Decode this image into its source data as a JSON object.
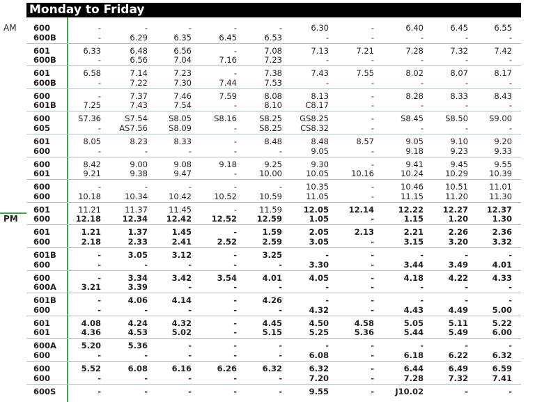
{
  "header": {
    "title": "Monday to Friday"
  },
  "periods": {
    "am": "AM",
    "pm": "PM"
  },
  "table": {
    "rows": [
      [
        "600",
        "-",
        "-",
        "-",
        "-",
        "-",
        "6.30",
        "-",
        "6.40",
        "6.45",
        "6.55"
      ],
      [
        "600B",
        "-",
        "6.29",
        "6.35",
        "6.45",
        "6.53",
        "-",
        "-",
        "-",
        "-",
        "-"
      ],
      [
        "601",
        "6.33",
        "6.48",
        "6.56",
        "-",
        "7.08",
        "7.13",
        "7.21",
        "7.28",
        "7.32",
        "7.42"
      ],
      [
        "600B",
        "-",
        "6.56",
        "7.04",
        "7.16",
        "7.23",
        "-",
        "-",
        "-",
        "-",
        "-"
      ],
      [
        "601",
        "6.58",
        "7.14",
        "7.23",
        "-",
        "7.38",
        "7.43",
        "7.55",
        "8.02",
        "8.07",
        "8.17"
      ],
      [
        "600B",
        "-",
        "7.22",
        "7.30",
        "7.44",
        "7.53",
        "-",
        "-",
        "-",
        "-",
        "-"
      ],
      [
        "600",
        "-",
        "7.37",
        "7.46",
        "7.59",
        "8.08",
        "8.13",
        "-",
        "8.28",
        "8.33",
        "8.43"
      ],
      [
        "601B",
        "7.25",
        "7.43",
        "7.54",
        "-",
        "8.10",
        "C8.17",
        "-",
        "-",
        "-",
        "-"
      ],
      [
        "600",
        "S7.36",
        "S7.54",
        "S8.05",
        "S8.16",
        "S8.25",
        "GS8.25",
        "-",
        "S8.45",
        "S8.50",
        "S9.00"
      ],
      [
        "605",
        "-",
        "AS7.56",
        "S8.09",
        "-",
        "S8.25",
        "CS8.32",
        "-",
        "-",
        "-",
        "-"
      ],
      [
        "601",
        "8.05",
        "8.23",
        "8.33",
        "-",
        "8.48",
        "8.48",
        "8.57",
        "9.05",
        "9.10",
        "9.20"
      ],
      [
        "600",
        "-",
        "-",
        "-",
        "-",
        "-",
        "9.05",
        "-",
        "9.18",
        "9.23",
        "9.33"
      ],
      [
        "600",
        "8.42",
        "9.00",
        "9.08",
        "9.18",
        "9.25",
        "9.30",
        "-",
        "9.41",
        "9.45",
        "9.55"
      ],
      [
        "601",
        "9.21",
        "9.38",
        "9.47",
        "-",
        "10.00",
        "10.05",
        "10.16",
        "10.24",
        "10.29",
        "10.39"
      ],
      [
        "600",
        "-",
        "-",
        "-",
        "-",
        "-",
        "10.35",
        "-",
        "10.46",
        "10.51",
        "11.01"
      ],
      [
        "600",
        "10.18",
        "10.34",
        "10.42",
        "10.52",
        "10.59",
        "11.05",
        "-",
        "11.15",
        "11.20",
        "11.30"
      ],
      [
        "601",
        "11.21",
        "11.37",
        "11.45",
        "-",
        "11.59",
        "12.05",
        "12.14",
        "12.22",
        "12.27",
        "12.37"
      ],
      [
        "600",
        "12.18",
        "12.34",
        "12.42",
        "12.52",
        "12.59",
        "1.05",
        "-",
        "1.15",
        "1.20",
        "1.30"
      ],
      [
        "601",
        "1.21",
        "1.37",
        "1.45",
        "-",
        "1.59",
        "2.05",
        "2.13",
        "2.21",
        "2.26",
        "2.36"
      ],
      [
        "600",
        "2.18",
        "2.33",
        "2.41",
        "2.52",
        "2.59",
        "3.05",
        "-",
        "3.15",
        "3.20",
        "3.32"
      ],
      [
        "601B",
        "-",
        "3.05",
        "3.12",
        "-",
        "3.25",
        "-",
        "-",
        "-",
        "-",
        "-"
      ],
      [
        "600",
        "-",
        "-",
        "-",
        "-",
        "-",
        "3.30",
        "-",
        "3.44",
        "3.49",
        "4.01"
      ],
      [
        "600",
        "-",
        "3.34",
        "3.42",
        "3.54",
        "4.01",
        "4.05",
        "-",
        "4.18",
        "4.22",
        "4.33"
      ],
      [
        "600A",
        "3.21",
        "3.39",
        "-",
        "-",
        "-",
        "-",
        "-",
        "-",
        "-",
        "-"
      ],
      [
        "601B",
        "-",
        "4.06",
        "4.14",
        "-",
        "4.26",
        "-",
        "-",
        "-",
        "-",
        "-"
      ],
      [
        "600",
        "-",
        "-",
        "-",
        "-",
        "-",
        "4.32",
        "-",
        "4.43",
        "4.49",
        "5.00"
      ],
      [
        "601",
        "4.08",
        "4.24",
        "4.32",
        "-",
        "4.45",
        "4.50",
        "4.58",
        "5.05",
        "5.11",
        "5.22"
      ],
      [
        "601",
        "4.36",
        "4.53",
        "5.02",
        "-",
        "5.15",
        "5.25",
        "5.36",
        "5.44",
        "5.49",
        "6.00"
      ],
      [
        "600A",
        "5.20",
        "5.36",
        "-",
        "-",
        "-",
        "-",
        "-",
        "-",
        "-",
        "-"
      ],
      [
        "600",
        "-",
        "-",
        "-",
        "-",
        "-",
        "6.08",
        "-",
        "6.18",
        "6.22",
        "6.32"
      ],
      [
        "600",
        "5.52",
        "6.08",
        "6.16",
        "6.26",
        "6.32",
        "6.32",
        "-",
        "6.44",
        "6.49",
        "6.59"
      ],
      [
        "600",
        "-",
        "-",
        "-",
        "-",
        "-",
        "7.20",
        "-",
        "7.28",
        "7.32",
        "7.41"
      ],
      [
        "600S",
        "-",
        "-",
        "-",
        "-",
        "-",
        "9.55",
        "-",
        "J10.02",
        "-",
        "-"
      ]
    ]
  }
}
